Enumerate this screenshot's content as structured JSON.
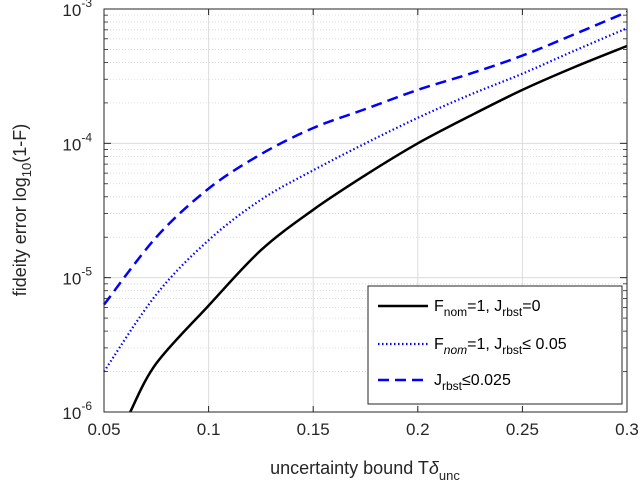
{
  "chart_data": {
    "type": "line",
    "xlabel": {
      "main": "uncertainty bound T",
      "greek": "δ",
      "sub": "unc"
    },
    "ylabel": {
      "main": "fideity error log",
      "sub": "10",
      "tail": "(1-F)"
    },
    "xlim": [
      0.05,
      0.3
    ],
    "ylim": [
      1e-06,
      0.001
    ],
    "yscale": "log",
    "grid": true,
    "legend_position": "bottom-right",
    "x_ticks": [
      "0.05",
      "0.1",
      "0.15",
      "0.2",
      "0.25",
      "0.3"
    ],
    "y_ticks": [
      {
        "base": "10",
        "exp": "-6"
      },
      {
        "base": "10",
        "exp": "-5"
      },
      {
        "base": "10",
        "exp": "-4"
      },
      {
        "base": "10",
        "exp": "-3"
      }
    ],
    "series": [
      {
        "legend": [
          {
            "t": "F"
          },
          {
            "t": "nom",
            "sub": true
          },
          {
            "t": "=1, J"
          },
          {
            "t": "rbst",
            "sub": true
          },
          {
            "t": "=0"
          }
        ],
        "color": "#000000",
        "style": "solid",
        "x": [
          0.0625,
          0.075,
          0.1,
          0.125,
          0.15,
          0.175,
          0.2,
          0.225,
          0.25,
          0.275,
          0.3
        ],
        "y": [
          1e-06,
          2.3e-06,
          6.2e-06,
          1.6e-05,
          3.2e-05,
          5.8e-05,
          0.0001,
          0.00016,
          0.00025,
          0.00037,
          0.00053
        ]
      },
      {
        "legend": [
          {
            "t": "F"
          },
          {
            "t": "nom",
            "sub": true,
            "italic": true
          },
          {
            "t": "=1, J"
          },
          {
            "t": "rbst",
            "sub": true
          },
          {
            "t": "≤ 0.05"
          }
        ],
        "color": "#0000ff",
        "style": "dotted",
        "x": [
          0.05,
          0.075,
          0.1,
          0.125,
          0.15,
          0.175,
          0.2,
          0.225,
          0.25,
          0.275,
          0.3
        ],
        "y": [
          2e-06,
          7.5e-06,
          1.9e-05,
          3.8e-05,
          6.3e-05,
          0.0001,
          0.000155,
          0.00023,
          0.00033,
          0.00049,
          0.00072
        ]
      },
      {
        "legend": [
          {
            "t": "J"
          },
          {
            "t": "rbst",
            "sub": true
          },
          {
            "t": "≤0.025"
          }
        ],
        "color": "#0000ff",
        "style": "dashed",
        "x": [
          0.05,
          0.075,
          0.1,
          0.125,
          0.15,
          0.175,
          0.2,
          0.225,
          0.25,
          0.275,
          0.3
        ],
        "y": [
          6.3e-06,
          2e-05,
          4.6e-05,
          8.3e-05,
          0.00013,
          0.00018,
          0.00025,
          0.00033,
          0.00045,
          0.00065,
          0.00095
        ]
      }
    ]
  }
}
